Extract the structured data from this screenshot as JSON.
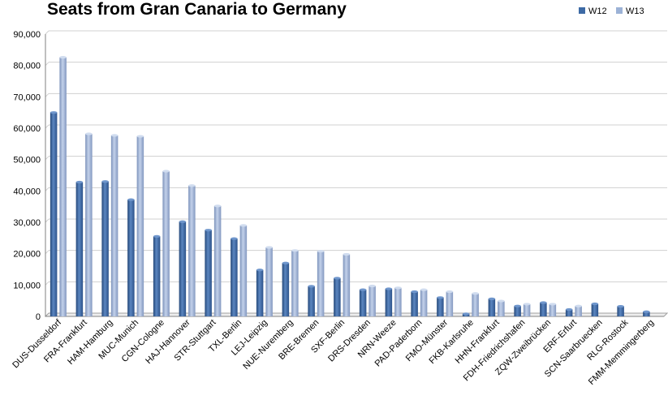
{
  "chart_data": {
    "type": "bar",
    "title": "Seats from Gran Canaria to Germany",
    "xlabel": "",
    "ylabel": "",
    "ylim": [
      0,
      90000
    ],
    "yticks": [
      "0",
      "10,000",
      "20,000",
      "30,000",
      "40,000",
      "50,000",
      "60,000",
      "70,000",
      "80,000",
      "90,000"
    ],
    "grid": true,
    "legend_position": "top-right",
    "categories": [
      "DUS-Dusseldorf",
      "FRA-Frankfurt",
      "HAM-Hamburg",
      "MUC-Munich",
      "CGN-Cologne",
      "HAJ-Hannover",
      "STR-Stuttgart",
      "TXL-Berlin",
      "LEJ-Leipzig",
      "NUE-Nuremberg",
      "BRE-Bremen",
      "SXF-Berlin",
      "DRS-Dresden",
      "NRN-Weeze",
      "PAD-Paderborn",
      "FMO-Münster",
      "FKB-Karlsruhe",
      "HHN-Frankfurt",
      "FDH-Friedrichshafen",
      "ZQW-Zweibrücken",
      "ERF-Erfurt",
      "SCN-Saarbruecken",
      "RLG-Rostock",
      "FMM-Memmingerberg"
    ],
    "series": [
      {
        "name": "W12",
        "color": "#3d6aa5",
        "values": [
          65000,
          42800,
          43000,
          37200,
          25500,
          30200,
          27500,
          24800,
          14800,
          17000,
          9600,
          12200,
          8500,
          8800,
          7900,
          6000,
          800,
          5600,
          3300,
          4400,
          2200,
          4000,
          3200,
          1500
        ]
      },
      {
        "name": "W13",
        "color": "#9cb2d6",
        "values": [
          82600,
          58200,
          57700,
          57400,
          46300,
          41700,
          35200,
          29000,
          22000,
          21000,
          20800,
          19800,
          9700,
          9100,
          8500,
          7900,
          7300,
          4900,
          3900,
          3900,
          3300,
          0,
          0,
          0
        ]
      }
    ]
  }
}
